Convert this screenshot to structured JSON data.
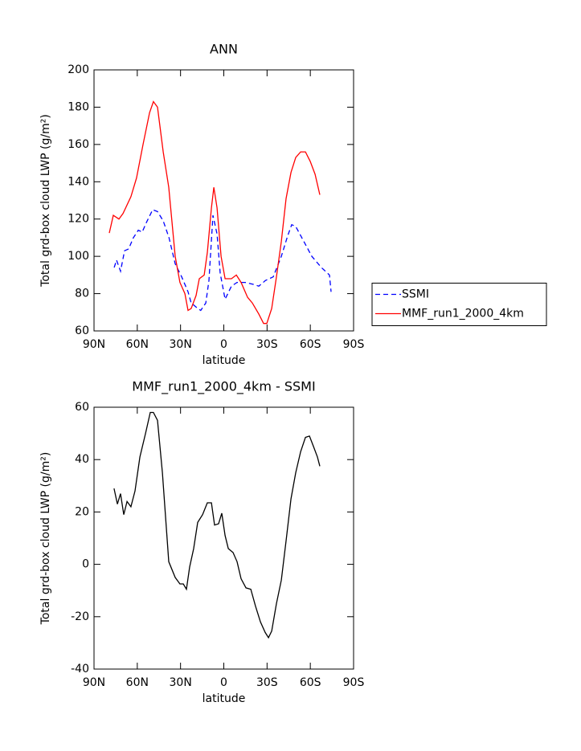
{
  "chart_data": [
    {
      "type": "line",
      "title": "ANN",
      "xlabel": "latitude",
      "ylabel": "Total grd-box cloud LWP (g/m²)",
      "xlim": [
        90,
        -90
      ],
      "xticks": [
        {
          "value": 90,
          "label": "90N"
        },
        {
          "value": 60,
          "label": "60N"
        },
        {
          "value": 30,
          "label": "30N"
        },
        0,
        {
          "value": -30,
          "label": "30S"
        },
        {
          "value": -60,
          "label": "60S"
        },
        {
          "value": -90,
          "label": "90S"
        }
      ],
      "ylim": [
        60,
        200
      ],
      "yticks": [
        60,
        80,
        100,
        120,
        140,
        160,
        180,
        200
      ],
      "legend": "right",
      "series": [
        {
          "name": "SSMI",
          "color": "#0000ff",
          "linestyle": "dashed",
          "x": [
            76,
            74.4,
            71.6,
            68.8,
            66,
            62.7,
            59.3,
            56.6,
            53.8,
            49.3,
            46,
            42,
            38,
            33.7,
            29.2,
            24.8,
            22.6,
            18,
            16,
            12.5,
            10.3,
            7.5,
            4.7,
            2.5,
            -0.9,
            -5.3,
            -9.2,
            -14.8,
            -20.4,
            -24.3,
            -28.8,
            -34.3,
            -39.9,
            -44.3,
            -47.1,
            -49.9,
            -55.5,
            -61,
            -67.7,
            -73.3,
            -74.4
          ],
          "values": [
            94,
            98,
            92,
            103,
            104,
            110,
            114,
            113,
            118,
            125,
            124,
            119,
            110,
            96,
            89,
            81,
            75,
            72,
            71,
            75,
            87,
            122,
            112,
            91,
            77,
            84,
            86,
            86,
            85,
            84,
            87,
            89,
            100,
            111,
            117,
            116,
            108,
            100,
            94,
            90,
            81
          ]
        },
        {
          "name": "MMF_run1_2000_4km",
          "color": "#ff0000",
          "linestyle": "solid",
          "x": [
            79.4,
            76.6,
            72.7,
            69.9,
            64.4,
            60.5,
            56,
            51.5,
            48.8,
            46,
            42,
            38.2,
            33.7,
            30.4,
            27,
            24.8,
            22.6,
            19.2,
            17,
            13.6,
            11.4,
            8.6,
            6.9,
            4.7,
            1.9,
            -0.9,
            -5.3,
            -8.7,
            -12,
            -16.5,
            -19.8,
            -24.3,
            -27.6,
            -29.8,
            -33.2,
            -36.5,
            -39.9,
            -43.2,
            -46.6,
            -49.9,
            -53.3,
            -56.6,
            -59.9,
            -63.3,
            -66.6
          ],
          "values": [
            112.5,
            122,
            120,
            123,
            132,
            142,
            160,
            177,
            183,
            180,
            156,
            137,
            100,
            86,
            80,
            71,
            72,
            79,
            88,
            90,
            102,
            126,
            137,
            126,
            100,
            88,
            88,
            90,
            86,
            78,
            75,
            69,
            64,
            64,
            72,
            89,
            108,
            131,
            145,
            153,
            156,
            156,
            151,
            144,
            133
          ]
        }
      ]
    },
    {
      "type": "line",
      "title": "MMF_run1_2000_4km - SSMI",
      "xlabel": "latitude",
      "ylabel": "Total grd-box cloud LWP (g/m²)",
      "xlim": [
        90,
        -90
      ],
      "xticks": [
        {
          "value": 90,
          "label": "90N"
        },
        {
          "value": 60,
          "label": "60N"
        },
        {
          "value": 30,
          "label": "30N"
        },
        0,
        {
          "value": -30,
          "label": "30S"
        },
        {
          "value": -60,
          "label": "60S"
        },
        {
          "value": -90,
          "label": "90S"
        }
      ],
      "ylim": [
        -40,
        60
      ],
      "yticks": [
        -40,
        -20,
        0,
        20,
        40,
        60
      ],
      "series": [
        {
          "color": "#000000",
          "linestyle": "solid",
          "x": [
            76.1,
            73.8,
            71.6,
            69.4,
            67.1,
            64.4,
            61.6,
            58.2,
            54.3,
            51,
            48.8,
            46,
            42.6,
            38.2,
            33.7,
            30.4,
            28.1,
            25.9,
            23.7,
            20.9,
            18.1,
            14.7,
            11.4,
            8.6,
            6.4,
            3.6,
            1.4,
            -0.9,
            -3.1,
            -6.4,
            -9.2,
            -12,
            -15.4,
            -18.7,
            -22,
            -25.4,
            -28.7,
            -31,
            -33.2,
            -36.5,
            -39.9,
            -43.2,
            -46.6,
            -49.9,
            -53.3,
            -56.6,
            -59.4,
            -62.2,
            -64.9,
            -66.6
          ],
          "values": [
            29,
            23,
            27,
            19,
            24,
            22,
            28,
            41,
            50,
            58,
            58,
            55,
            35,
            1,
            -5,
            -7.5,
            -7.5,
            -9.5,
            -1,
            6,
            16,
            19,
            23.5,
            23.5,
            15,
            15.5,
            19.5,
            11,
            6,
            4.5,
            1,
            -5.5,
            -9,
            -9.5,
            -16,
            -22,
            -26,
            -28,
            -25.5,
            -15,
            -6,
            9,
            25,
            35,
            43,
            48.5,
            49,
            45,
            41,
            37.5
          ]
        }
      ]
    }
  ]
}
